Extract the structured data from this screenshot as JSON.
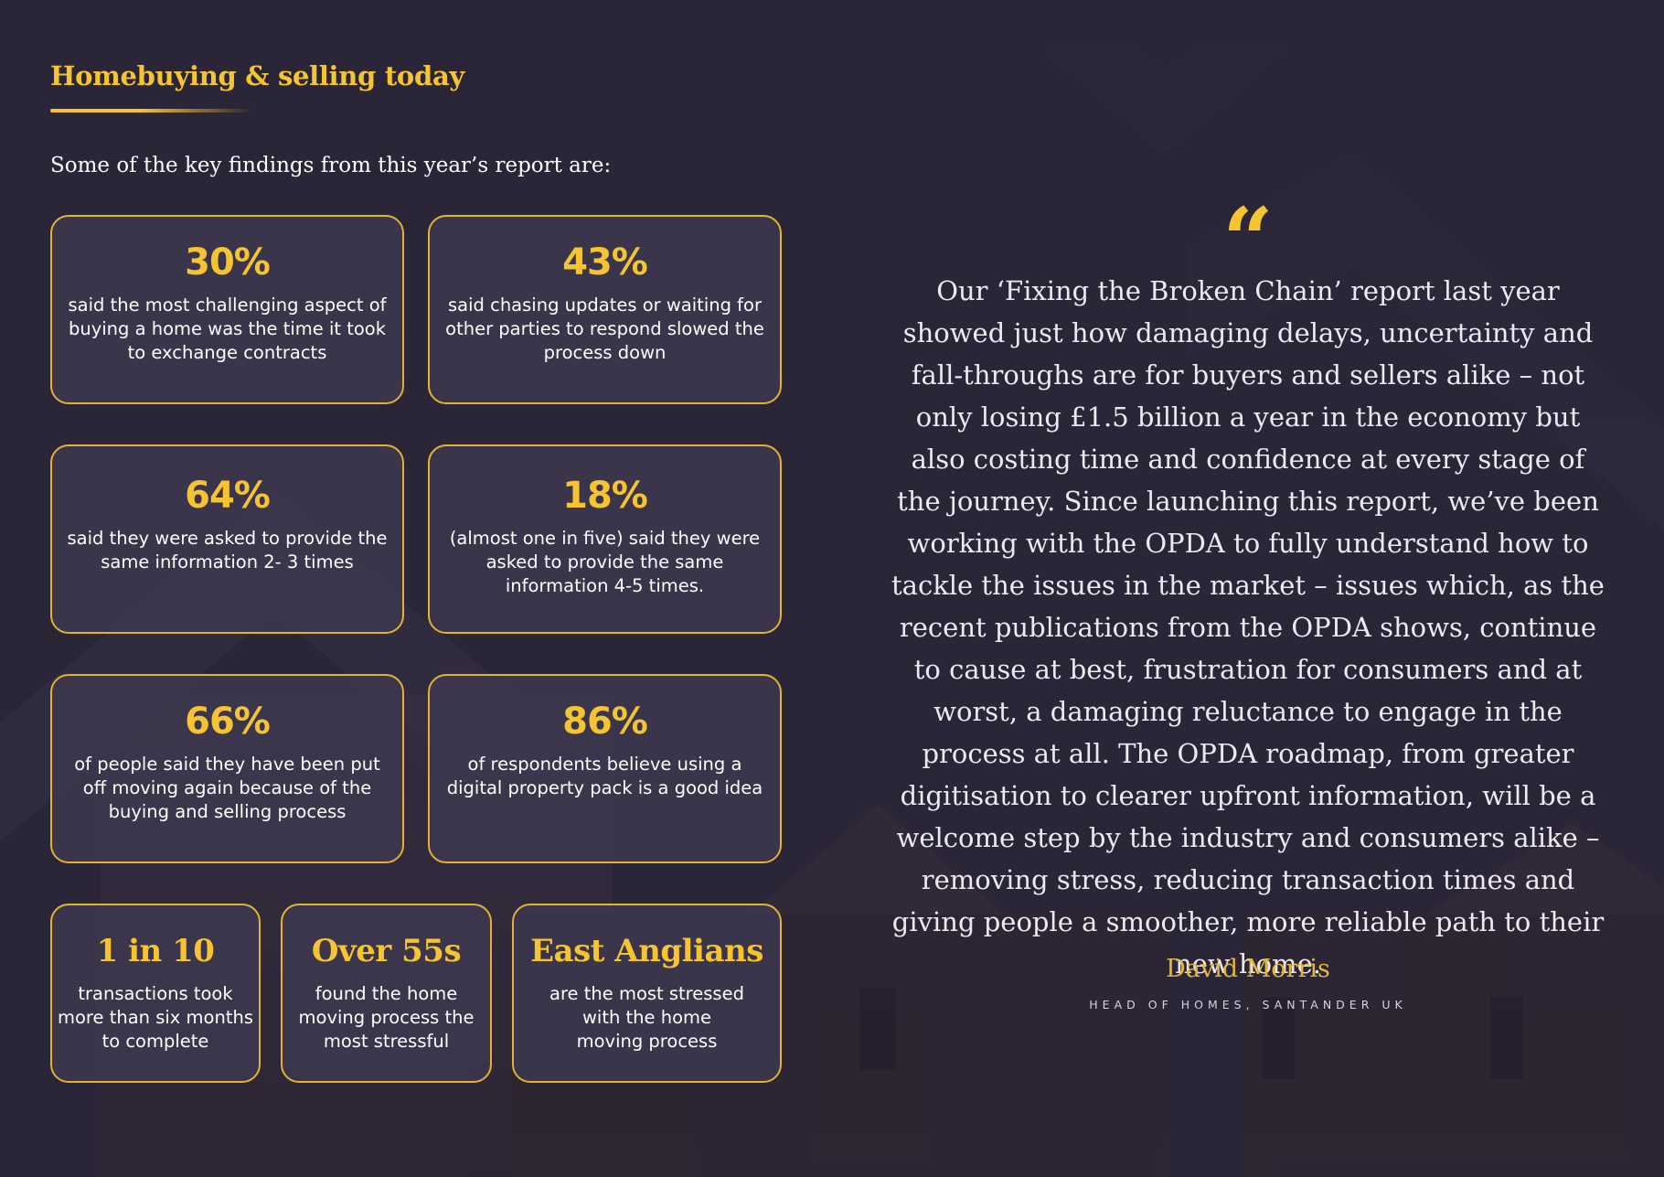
{
  "section": {
    "title": "Homebuying & selling today",
    "intro": "Some of the key findings from this year’s report are:"
  },
  "colors": {
    "accent": "#f6c331",
    "background": "#2a2638",
    "card_border": "#e3b233"
  },
  "findings": [
    {
      "value": "30%",
      "description": "said the most challenging aspect of buying a home was the time it took to exchange contracts"
    },
    {
      "value": "43%",
      "description": "said chasing updates or waiting for other parties to respond slowed the process down"
    },
    {
      "value": "64%",
      "description": "said they were asked to provide the same information 2- 3 times"
    },
    {
      "value": "18%",
      "description": "(almost one in five) said they were asked to provide the same information 4-5 times."
    },
    {
      "value": "66%",
      "description": "of people said they have been put off moving again because of the buying and selling process"
    },
    {
      "value": "86%",
      "description": "of respondents believe using a digital property pack is a good idea"
    },
    {
      "value": "1 in 10",
      "description": "transactions took more than six months to complete"
    },
    {
      "value": "Over 55s",
      "description": "found the home moving process the most stressful"
    },
    {
      "value": "East Anglians",
      "description": "are the most stressed with the home moving process"
    }
  ],
  "quote": {
    "mark_icon": "quote-icon",
    "text": "Our ‘Fixing the Broken Chain’ report last year showed just how damaging delays, uncertainty and fall-throughs are for buyers and sellers alike – not only losing £1.5 billion a year in the economy but also costing time and confidence at every stage of the journey. Since launching this report, we’ve been working with the OPDA to fully understand how to tackle the issues in the market – issues which, as the recent publications from the OPDA shows, continue to cause at best, frustration for consumers and at worst, a damaging reluctance to engage in the process at all. The OPDA roadmap, from greater digitisation to clearer upfront information, will be a welcome step by the industry and consumers alike – removing stress, reducing transaction times and giving people a smoother, more reliable path to their new home.",
    "author": "David Morris",
    "role": "HEAD OF HOMES, SANTANDER UK"
  }
}
